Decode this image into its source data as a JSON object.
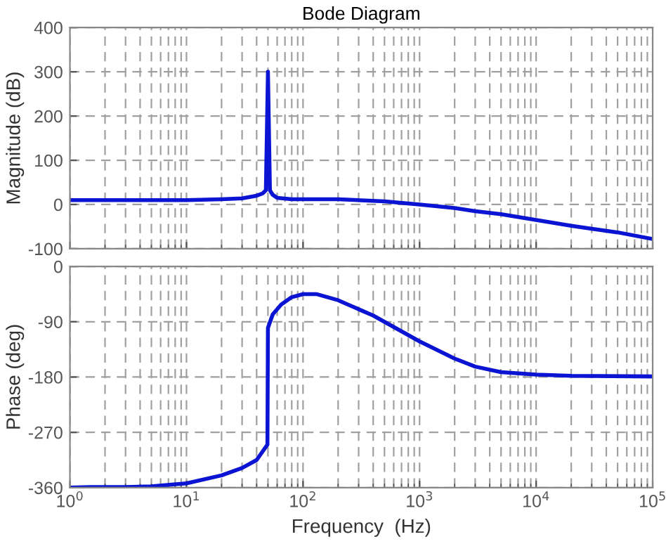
{
  "chart_data": [
    {
      "type": "line",
      "title": "Bode Diagram",
      "ylabel": "Magnitude (dB)",
      "log": "x",
      "grid": true,
      "tick_labels": "y",
      "xlim": [
        1,
        100000
      ],
      "xticks": [
        {
          "value": 1,
          "label": null
        },
        {
          "value": 10,
          "label": null
        },
        {
          "value": 100,
          "label": null
        },
        {
          "value": 1000,
          "label": null
        },
        {
          "value": 10000,
          "label": null
        },
        {
          "value": 100000,
          "label": null
        }
      ],
      "ylim": [
        -100,
        400
      ],
      "yticks": [
        -100,
        0,
        100,
        200,
        300,
        400
      ],
      "series": [
        {
          "color": "#0a14d2",
          "x": [
            1,
            3,
            10,
            20,
            30,
            40,
            45,
            48,
            50,
            52,
            55,
            60,
            80,
            100,
            200,
            500,
            1000,
            2000,
            3000,
            5000,
            10000,
            20000,
            30000,
            50000,
            100000
          ],
          "values": [
            10,
            10,
            10,
            12,
            14,
            20,
            25,
            32,
            300,
            32,
            22,
            15,
            12,
            12,
            12,
            7,
            0,
            -8,
            -15,
            -22,
            -35,
            -48,
            -55,
            -63,
            -78
          ]
        }
      ]
    },
    {
      "type": "line",
      "xlabel": "Frequency  (Hz)",
      "ylabel": "Phase (deg)",
      "log": "x",
      "grid": true,
      "xlim": [
        1,
        100000
      ],
      "xticks": [
        {
          "value": 1,
          "label": "10$^{0}$"
        },
        {
          "value": 10,
          "label": "10$^{1}$"
        },
        {
          "value": 100,
          "label": "10$^{2}$"
        },
        {
          "value": 1000,
          "label": "10$^{3}$"
        },
        {
          "value": 10000,
          "label": "10$^{4}$"
        },
        {
          "value": 100000,
          "label": "10$^{5}$"
        }
      ],
      "ylim": [
        -360,
        0
      ],
      "yticks": [
        -360,
        -270,
        -180,
        -90,
        0
      ],
      "series": [
        {
          "color": "#0a14d2",
          "x": [
            1,
            1.5,
            3,
            5,
            10,
            20,
            30,
            40,
            49.5,
            50,
            55,
            65,
            80,
            100,
            130,
            200,
            400,
            1000,
            2000,
            3000,
            5000,
            10000,
            20000,
            100000
          ],
          "values": [
            -360,
            -359,
            -359,
            -358,
            -353,
            -340,
            -328,
            -315,
            -290,
            -100,
            -78,
            -62,
            -50,
            -45,
            -45,
            -55,
            -80,
            -122,
            -150,
            -163,
            -172,
            -176,
            -178,
            -179
          ]
        }
      ]
    }
  ]
}
